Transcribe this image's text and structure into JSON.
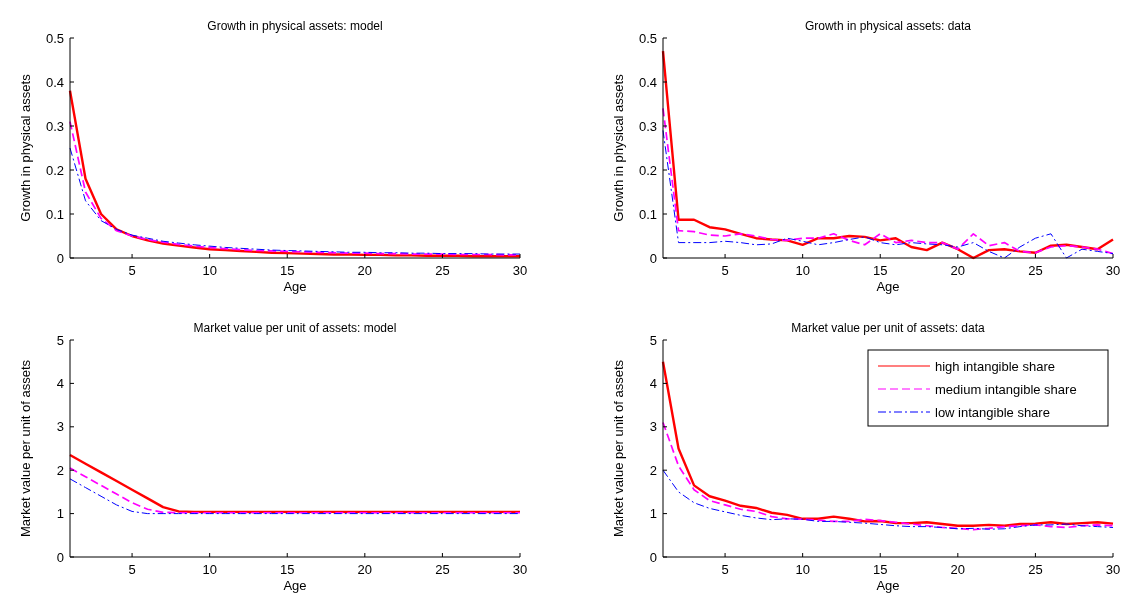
{
  "chart_data": [
    {
      "type": "line",
      "title": "Growth in physical assets: model",
      "xlabel": "Age",
      "ylabel": "Growth in physical assets",
      "x": [
        1,
        2,
        3,
        4,
        5,
        6,
        7,
        8,
        9,
        10,
        11,
        12,
        13,
        14,
        15,
        16,
        17,
        18,
        19,
        20,
        21,
        22,
        23,
        24,
        25,
        26,
        27,
        28,
        29,
        30
      ],
      "xlim": [
        1,
        30
      ],
      "xticks": [
        5,
        10,
        15,
        20,
        25,
        30
      ],
      "ylim": [
        0,
        0.5
      ],
      "yticks": [
        0,
        0.1,
        0.2,
        0.3,
        0.4,
        0.5
      ],
      "legend": false,
      "series": [
        {
          "color": "#ff0000",
          "line_style": "solid",
          "values": [
            0.38,
            0.18,
            0.1,
            0.065,
            0.05,
            0.04,
            0.033,
            0.028,
            0.024,
            0.02,
            0.018,
            0.016,
            0.014,
            0.012,
            0.011,
            0.01,
            0.009,
            0.008,
            0.008,
            0.007,
            0.007,
            0.006,
            0.006,
            0.005,
            0.005,
            0.005,
            0.004,
            0.004,
            0.004,
            0.004
          ]
        },
        {
          "color": "#ff00ff",
          "line_style": "dashed",
          "values": [
            0.31,
            0.15,
            0.09,
            0.062,
            0.05,
            0.042,
            0.036,
            0.031,
            0.027,
            0.024,
            0.021,
            0.019,
            0.017,
            0.016,
            0.015,
            0.014,
            0.013,
            0.012,
            0.011,
            0.011,
            0.01,
            0.01,
            0.009,
            0.009,
            0.009,
            0.008,
            0.008,
            0.008,
            0.007,
            0.007
          ]
        },
        {
          "color": "#0000ff",
          "line_style": "dashdot",
          "values": [
            0.25,
            0.13,
            0.085,
            0.065,
            0.052,
            0.045,
            0.038,
            0.034,
            0.03,
            0.027,
            0.024,
            0.022,
            0.02,
            0.018,
            0.017,
            0.016,
            0.015,
            0.014,
            0.013,
            0.013,
            0.012,
            0.012,
            0.011,
            0.011,
            0.01,
            0.01,
            0.01,
            0.009,
            0.009,
            0.009
          ]
        }
      ]
    },
    {
      "type": "line",
      "title": "Growth in physical assets: data",
      "xlabel": "Age",
      "ylabel": "Growth in physical assets",
      "x": [
        1,
        2,
        3,
        4,
        5,
        6,
        7,
        8,
        9,
        10,
        11,
        12,
        13,
        14,
        15,
        16,
        17,
        18,
        19,
        20,
        21,
        22,
        23,
        24,
        25,
        26,
        27,
        28,
        29,
        30
      ],
      "xlim": [
        1,
        30
      ],
      "xticks": [
        5,
        10,
        15,
        20,
        25,
        30
      ],
      "ylim": [
        0,
        0.5
      ],
      "yticks": [
        0,
        0.1,
        0.2,
        0.3,
        0.4,
        0.5
      ],
      "legend": false,
      "series": [
        {
          "color": "#ff0000",
          "line_style": "solid",
          "values": [
            0.47,
            0.087,
            0.087,
            0.07,
            0.065,
            0.055,
            0.045,
            0.042,
            0.04,
            0.03,
            0.045,
            0.045,
            0.05,
            0.048,
            0.04,
            0.045,
            0.025,
            0.018,
            0.035,
            0.02,
            0,
            0.018,
            0.02,
            0.015,
            0.012,
            0.028,
            0.03,
            0.025,
            0.02,
            0.042
          ]
        },
        {
          "color": "#ff00ff",
          "line_style": "dashed",
          "values": [
            0.34,
            0.062,
            0.06,
            0.052,
            0.05,
            0.055,
            0.05,
            0.042,
            0.04,
            0.045,
            0.045,
            0.055,
            0.04,
            0.03,
            0.055,
            0.035,
            0.04,
            0.035,
            0.035,
            0.02,
            0.055,
            0.028,
            0.035,
            0.015,
            0.012,
            0.025,
            0.028,
            0.025,
            0.02,
            0.01
          ]
        },
        {
          "color": "#0000ff",
          "line_style": "dashdot",
          "values": [
            0.29,
            0.035,
            0.035,
            0.035,
            0.038,
            0.035,
            0.03,
            0.032,
            0.045,
            0.038,
            0.03,
            0.035,
            0.042,
            0.048,
            0.035,
            0.03,
            0.035,
            0.032,
            0.03,
            0.025,
            0.035,
            0.015,
            0,
            0.025,
            0.045,
            0.055,
            0,
            0.02,
            0.015,
            0.01
          ]
        }
      ]
    },
    {
      "type": "line",
      "title": "Market value per unit of assets: model",
      "xlabel": "Age",
      "ylabel": "Market value per unit of assets",
      "x": [
        1,
        2,
        3,
        4,
        5,
        6,
        7,
        8,
        9,
        10,
        11,
        12,
        13,
        14,
        15,
        16,
        17,
        18,
        19,
        20,
        21,
        22,
        23,
        24,
        25,
        26,
        27,
        28,
        29,
        30
      ],
      "xlim": [
        1,
        30
      ],
      "xticks": [
        5,
        10,
        15,
        20,
        25,
        30
      ],
      "ylim": [
        0,
        5
      ],
      "yticks": [
        0,
        1,
        2,
        3,
        4,
        5
      ],
      "legend": false,
      "series": [
        {
          "color": "#ff0000",
          "line_style": "solid",
          "values": [
            2.35,
            2.15,
            1.95,
            1.75,
            1.55,
            1.35,
            1.15,
            1.05,
            1.04,
            1.04,
            1.04,
            1.04,
            1.04,
            1.04,
            1.04,
            1.04,
            1.04,
            1.04,
            1.04,
            1.04,
            1.04,
            1.04,
            1.04,
            1.04,
            1.04,
            1.04,
            1.04,
            1.04,
            1.04,
            1.04
          ]
        },
        {
          "color": "#ff00ff",
          "line_style": "dashed",
          "values": [
            2.05,
            1.85,
            1.65,
            1.45,
            1.25,
            1.1,
            1.03,
            1.02,
            1.02,
            1.02,
            1.02,
            1.02,
            1.02,
            1.02,
            1.02,
            1.02,
            1.02,
            1.02,
            1.02,
            1.02,
            1.02,
            1.02,
            1.02,
            1.02,
            1.02,
            1.02,
            1.02,
            1.02,
            1.02,
            1.02
          ]
        },
        {
          "color": "#0000ff",
          "line_style": "dashdot",
          "values": [
            1.8,
            1.6,
            1.4,
            1.2,
            1.05,
            1,
            1,
            1,
            1,
            1,
            1,
            1,
            1,
            1,
            1,
            1,
            1,
            1,
            1,
            1,
            1,
            1,
            1,
            1,
            1,
            1,
            1,
            1,
            1,
            1
          ]
        }
      ]
    },
    {
      "type": "line",
      "title": "Market value per unit of assets: data",
      "xlabel": "Age",
      "ylabel": "Market value per unit of assets",
      "x": [
        1,
        2,
        3,
        4,
        5,
        6,
        7,
        8,
        9,
        10,
        11,
        12,
        13,
        14,
        15,
        16,
        17,
        18,
        19,
        20,
        21,
        22,
        23,
        24,
        25,
        26,
        27,
        28,
        29,
        30
      ],
      "xlim": [
        1,
        30
      ],
      "xticks": [
        5,
        10,
        15,
        20,
        25,
        30
      ],
      "ylim": [
        0,
        5
      ],
      "yticks": [
        0,
        1,
        2,
        3,
        4,
        5
      ],
      "legend": "top right",
      "series": [
        {
          "name": "high intangible share",
          "color": "#ff0000",
          "line_style": "solid",
          "values": [
            4.5,
            2.5,
            1.65,
            1.4,
            1.3,
            1.18,
            1.13,
            1.02,
            0.97,
            0.88,
            0.88,
            0.93,
            0.88,
            0.82,
            0.83,
            0.78,
            0.78,
            0.8,
            0.76,
            0.72,
            0.72,
            0.74,
            0.72,
            0.76,
            0.77,
            0.8,
            0.76,
            0.78,
            0.8,
            0.77
          ]
        },
        {
          "name": "medium intangible share",
          "color": "#ff00ff",
          "line_style": "dashed",
          "values": [
            3.1,
            2.1,
            1.55,
            1.3,
            1.2,
            1.1,
            1.05,
            0.93,
            0.88,
            0.87,
            0.85,
            0.82,
            0.82,
            0.87,
            0.84,
            0.8,
            0.76,
            0.72,
            0.68,
            0.66,
            0.63,
            0.66,
            0.7,
            0.72,
            0.74,
            0.7,
            0.68,
            0.72,
            0.74,
            0.72
          ]
        },
        {
          "name": "low intangible share",
          "color": "#0000ff",
          "line_style": "dashdot",
          "values": [
            2.0,
            1.5,
            1.25,
            1.12,
            1.04,
            0.96,
            0.9,
            0.86,
            0.88,
            0.87,
            0.82,
            0.82,
            0.8,
            0.78,
            0.75,
            0.72,
            0.7,
            0.7,
            0.68,
            0.65,
            0.66,
            0.64,
            0.65,
            0.7,
            0.74,
            0.74,
            0.76,
            0.72,
            0.7,
            0.68
          ]
        }
      ]
    }
  ]
}
